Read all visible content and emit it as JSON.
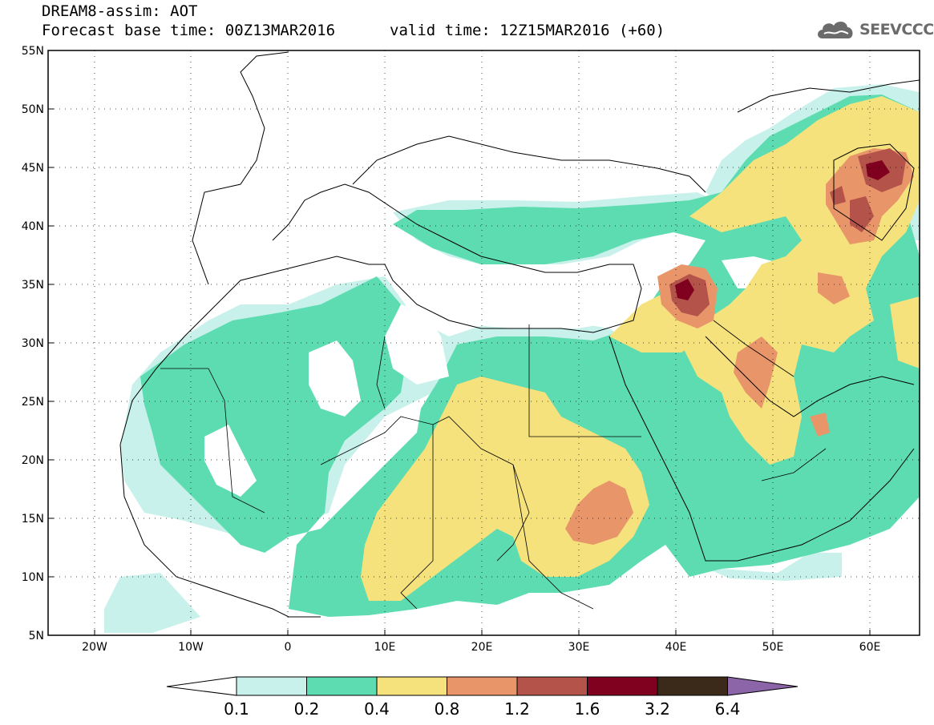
{
  "header": {
    "title_line1": "DREAM8-assim: AOT",
    "base_time": "Forecast base time: 00Z13MAR2016",
    "valid_time": "valid time: 12Z15MAR2016 (+60)",
    "logo_text": "SEEVCCC",
    "logo_icon": "cloud-icon"
  },
  "axes": {
    "lat_labels": [
      "55N",
      "50N",
      "45N",
      "40N",
      "35N",
      "30N",
      "25N",
      "20N",
      "15N",
      "10N",
      "5N"
    ],
    "lon_labels": [
      "20W",
      "10W",
      "0",
      "10E",
      "20E",
      "30E",
      "40E",
      "50E",
      "60E"
    ],
    "lat_range": [
      5,
      55
    ],
    "lon_range": [
      -25,
      65
    ]
  },
  "colorbar": {
    "thresholds": [
      "0.1",
      "0.2",
      "0.4",
      "0.8",
      "1.2",
      "1.6",
      "3.2",
      "6.4"
    ],
    "colors": [
      "#ffffff",
      "#c8f1eb",
      "#5ddcb1",
      "#f6e27c",
      "#e8956a",
      "#b4534a",
      "#800020",
      "#3b2a1a",
      "#8c64a8"
    ]
  }
}
